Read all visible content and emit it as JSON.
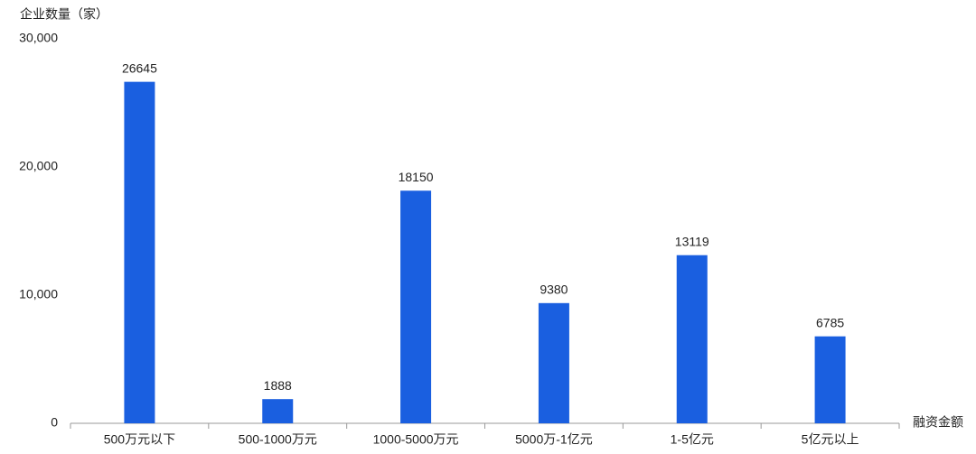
{
  "chart_data": {
    "type": "bar",
    "y_label": "企业数量（家）",
    "x_label": "融资金额",
    "categories": [
      "500万元以下",
      "500-1000万元",
      "1000-5000万元",
      "5000万-1亿元",
      "1-5亿元",
      "5亿元以上"
    ],
    "values": [
      26645,
      1888,
      18150,
      9380,
      13119,
      6785
    ],
    "color": "#1a5fe0",
    "ylim": [
      0,
      30000
    ],
    "yticks": [
      0,
      {
        "value": 10000,
        "label": "10,000"
      },
      {
        "value": 20000,
        "label": "20,000"
      },
      {
        "value": 30000,
        "label": "30,000"
      }
    ],
    "grid": false
  }
}
